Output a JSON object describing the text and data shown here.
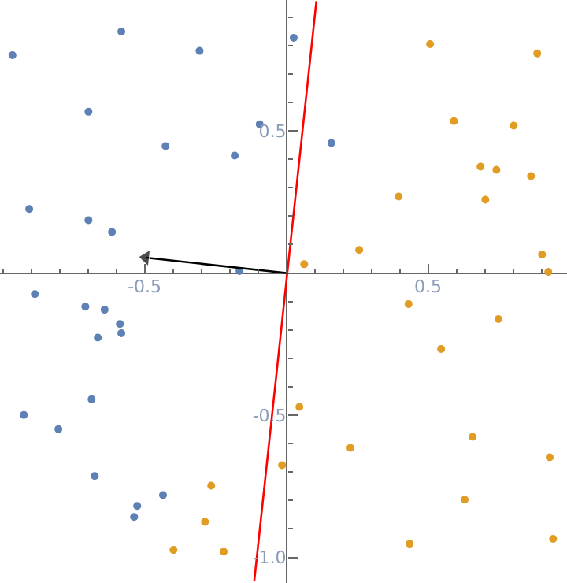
{
  "chart_data": {
    "type": "scatter",
    "xlim": [
      -1.01,
      0.99
    ],
    "ylim": [
      -1.09,
      0.96
    ],
    "xticks": [
      -0.5,
      0.5
    ],
    "yticks": [
      {
        "value": -1,
        "label": "-1.0"
      },
      -0.5,
      0.5
    ],
    "grid": false,
    "marker": "circle",
    "series": [
      {
        "color": "#5e81b5",
        "x": [
          -0.966,
          -0.582,
          -0.306,
          -0.698,
          -0.426,
          -0.182,
          -0.094,
          -0.907,
          -0.698,
          -0.615,
          -0.165,
          0.026,
          0.159,
          -0.887,
          -0.709,
          -0.641,
          -0.587,
          -0.665,
          -0.582,
          -0.687,
          -0.926,
          -0.804,
          -0.676,
          -0.435,
          -0.526,
          -0.537
        ],
        "values": [
          0.766,
          0.849,
          0.781,
          0.567,
          0.446,
          0.413,
          0.523,
          0.225,
          0.186,
          0.144,
          0.007,
          0.827,
          0.457,
          -0.074,
          -0.118,
          -0.129,
          -0.179,
          -0.227,
          -0.212,
          -0.444,
          -0.499,
          -0.549,
          -0.714,
          -0.781,
          -0.819,
          -0.858
        ]
      },
      {
        "color": "#e19c24",
        "x": [
          -0.265,
          -0.015,
          -0.287,
          -0.398,
          -0.221,
          0.063,
          0.257,
          0.396,
          0.507,
          0.591,
          0.685,
          0.741,
          0.702,
          0.802,
          0.863,
          0.885,
          0.902,
          0.924,
          0.431,
          0.748,
          0.546,
          0.046,
          0.226,
          0.657,
          0.929,
          0.629,
          0.435,
          0.941
        ],
        "values": [
          -0.748,
          -0.676,
          -0.875,
          -0.974,
          -0.98,
          0.031,
          0.081,
          0.269,
          0.805,
          0.534,
          0.374,
          0.363,
          0.258,
          0.518,
          0.341,
          0.772,
          0.065,
          0.004,
          -0.109,
          -0.162,
          -0.267,
          -0.471,
          -0.615,
          -0.576,
          -0.648,
          -0.797,
          -0.952,
          -0.935
        ]
      },
      {
        "type": "line",
        "color": "#ff0000",
        "marker": "none",
        "x": [
          -0.113,
          0.106
        ],
        "values": [
          -1.083,
          0.956
        ]
      },
      {
        "type": "line",
        "color": "#000000",
        "marker": "triangle",
        "x": [
          0,
          -0.496
        ],
        "values": [
          0,
          0.054
        ]
      }
    ]
  }
}
